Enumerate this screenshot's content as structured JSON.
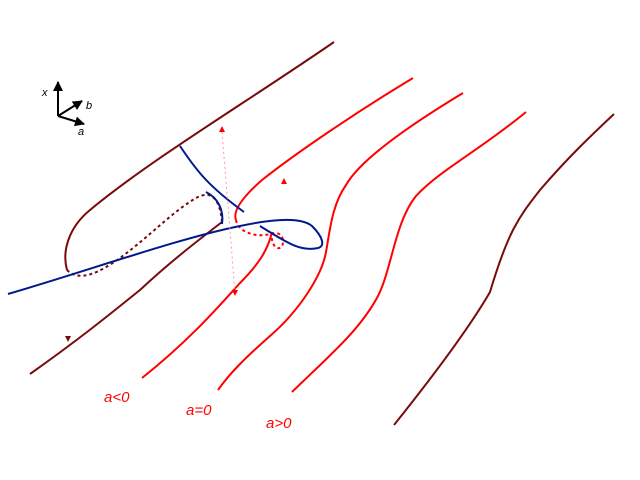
{
  "axes": {
    "x_label": "x",
    "b_label": "b",
    "a_label": "a"
  },
  "labels": {
    "a_neg": "a<0",
    "a_zero": "a=0",
    "a_pos": "a>0"
  },
  "colors": {
    "dark_curve": "#7a0a0a",
    "red_curve": "#ff0000",
    "blue_curve": "#001a8c",
    "axis": "#000000",
    "label": "#ff0000"
  }
}
